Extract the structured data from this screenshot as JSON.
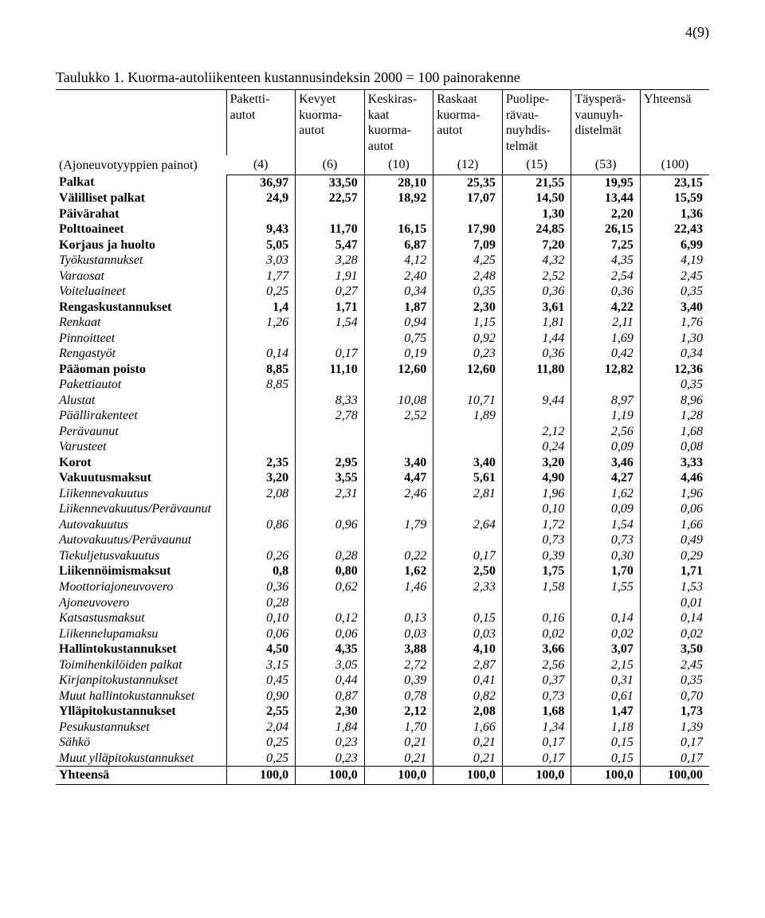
{
  "pageNumber": "4(9)",
  "caption": "Taulukko 1. Kuorma-autoliikenteen kustannusindeksin 2000 = 100 painorakenne",
  "headerLabel": "(Ajoneuvotyyppien painot)",
  "columns": [
    {
      "l1": "Paketti-",
      "l2": "autot",
      "l3": "",
      "l4": "",
      "w": "(4)"
    },
    {
      "l1": "Kevyet",
      "l2": "kuorma-",
      "l3": "autot",
      "l4": "",
      "w": "(6)"
    },
    {
      "l1": "Keskiras-",
      "l2": "kaat",
      "l3": "kuorma-",
      "l4": "autot",
      "w": "(10)"
    },
    {
      "l1": "Raskaat",
      "l2": "kuorma-",
      "l3": "autot",
      "l4": "",
      "w": "(12)"
    },
    {
      "l1": "Puolipe-",
      "l2": "rävau-",
      "l3": "nuyhdis-",
      "l4": "telmät",
      "w": "(15)"
    },
    {
      "l1": "Täysperä-",
      "l2": "vaunuyh-",
      "l3": "distelmät",
      "l4": "",
      "w": "(53)"
    },
    {
      "l1": "Yhteensä",
      "l2": "",
      "l3": "",
      "l4": "",
      "w": "(100)"
    }
  ],
  "rows": [
    {
      "label": "Palkat",
      "style": "bold",
      "v": [
        "36,97",
        "33,50",
        "28,10",
        "25,35",
        "21,55",
        "19,95",
        "23,15"
      ]
    },
    {
      "label": "Välilliset palkat",
      "style": "bold",
      "v": [
        "24,9",
        "22,57",
        "18,92",
        "17,07",
        "14,50",
        "13,44",
        "15,59"
      ]
    },
    {
      "label": "Päivärahat",
      "style": "bold",
      "v": [
        "",
        "",
        "",
        "",
        "1,30",
        "2,20",
        "1,36"
      ]
    },
    {
      "label": "Polttoaineet",
      "style": "bold",
      "v": [
        "9,43",
        "11,70",
        "16,15",
        "17,90",
        "24,85",
        "26,15",
        "22,43"
      ]
    },
    {
      "label": "Korjaus ja huolto",
      "style": "bold",
      "v": [
        "5,05",
        "5,47",
        "6,87",
        "7,09",
        "7,20",
        "7,25",
        "6,99"
      ]
    },
    {
      "label": "Työkustannukset",
      "style": "italic",
      "v": [
        "3,03",
        "3,28",
        "4,12",
        "4,25",
        "4,32",
        "4,35",
        "4,19"
      ]
    },
    {
      "label": "Varaosat",
      "style": "italic",
      "v": [
        "1,77",
        "1,91",
        "2,40",
        "2,48",
        "2,52",
        "2,54",
        "2,45"
      ]
    },
    {
      "label": "Voiteluaineet",
      "style": "italic",
      "v": [
        "0,25",
        "0,27",
        "0,34",
        "0,35",
        "0,36",
        "0,36",
        "0,35"
      ]
    },
    {
      "label": "Rengaskustannukset",
      "style": "bold",
      "v": [
        "1,4",
        "1,71",
        "1,87",
        "2,30",
        "3,61",
        "4,22",
        "3,40"
      ]
    },
    {
      "label": "Renkaat",
      "style": "italic",
      "v": [
        "1,26",
        "1,54",
        "0,94",
        "1,15",
        "1,81",
        "2,11",
        "1,76"
      ]
    },
    {
      "label": "Pinnoitteet",
      "style": "italic",
      "v": [
        "",
        "",
        "0,75",
        "0,92",
        "1,44",
        "1,69",
        "1,30"
      ]
    },
    {
      "label": "Rengastyöt",
      "style": "italic",
      "v": [
        "0,14",
        "0,17",
        "0,19",
        "0,23",
        "0,36",
        "0,42",
        "0,34"
      ]
    },
    {
      "label": "Pääoman poisto",
      "style": "bold",
      "v": [
        "8,85",
        "11,10",
        "12,60",
        "12,60",
        "11,80",
        "12,82",
        "12,36"
      ]
    },
    {
      "label": "Pakettiautot",
      "style": "italic",
      "v": [
        "8,85",
        "",
        "",
        "",
        "",
        "",
        "0,35"
      ]
    },
    {
      "label": "Alustat",
      "style": "italic",
      "v": [
        "",
        "8,33",
        "10,08",
        "10,71",
        "9,44",
        "8,97",
        "8,96"
      ]
    },
    {
      "label": "Päällirakenteet",
      "style": "italic",
      "v": [
        "",
        "2,78",
        "2,52",
        "1,89",
        "",
        "1,19",
        "1,28"
      ]
    },
    {
      "label": "Perävaunut",
      "style": "italic",
      "v": [
        "",
        "",
        "",
        "",
        "2,12",
        "2,56",
        "1,68"
      ]
    },
    {
      "label": "Varusteet",
      "style": "italic",
      "v": [
        "",
        "",
        "",
        "",
        "0,24",
        "0,09",
        "0,08"
      ]
    },
    {
      "label": "Korot",
      "style": "bold",
      "v": [
        "2,35",
        "2,95",
        "3,40",
        "3,40",
        "3,20",
        "3,46",
        "3,33"
      ]
    },
    {
      "label": "Vakuutusmaksut",
      "style": "bold",
      "v": [
        "3,20",
        "3,55",
        "4,47",
        "5,61",
        "4,90",
        "4,27",
        "4,46"
      ]
    },
    {
      "label": "Liikennevakuutus",
      "style": "italic",
      "v": [
        "2,08",
        "2,31",
        "2,46",
        "2,81",
        "1,96",
        "1,62",
        "1,96"
      ]
    },
    {
      "label": "Liikennevakuutus/Perävaunut",
      "style": "italic",
      "v": [
        "",
        "",
        "",
        "",
        "0,10",
        "0,09",
        "0,06"
      ]
    },
    {
      "label": "Autovakuutus",
      "style": "italic",
      "v": [
        "0,86",
        "0,96",
        "1,79",
        "2,64",
        "1,72",
        "1,54",
        "1,66"
      ]
    },
    {
      "label": "Autovakuutus/Perävaunut",
      "style": "italic",
      "v": [
        "",
        "",
        "",
        "",
        "0,73",
        "0,73",
        "0,49"
      ]
    },
    {
      "label": "Tiekuljetusvakuutus",
      "style": "italic",
      "v": [
        "0,26",
        "0,28",
        "0,22",
        "0,17",
        "0,39",
        "0,30",
        "0,29"
      ]
    },
    {
      "label": "Liikennöimismaksut",
      "style": "bold",
      "v": [
        "0,8",
        "0,80",
        "1,62",
        "2,50",
        "1,75",
        "1,70",
        "1,71"
      ]
    },
    {
      "label": "Moottoriajoneuvovero",
      "style": "italic",
      "v": [
        "0,36",
        "0,62",
        "1,46",
        "2,33",
        "1,58",
        "1,55",
        "1,53"
      ]
    },
    {
      "label": "Ajoneuvovero",
      "style": "italic",
      "v": [
        "0,28",
        "",
        "",
        "",
        "",
        "",
        "0,01"
      ]
    },
    {
      "label": "Katsastusmaksut",
      "style": "italic",
      "v": [
        "0,10",
        "0,12",
        "0,13",
        "0,15",
        "0,16",
        "0,14",
        "0,14"
      ]
    },
    {
      "label": "Liikennelupamaksu",
      "style": "italic",
      "v": [
        "0,06",
        "0,06",
        "0,03",
        "0,03",
        "0,02",
        "0,02",
        "0,02"
      ]
    },
    {
      "label": "Hallintokustannukset",
      "style": "bold",
      "v": [
        "4,50",
        "4,35",
        "3,88",
        "4,10",
        "3,66",
        "3,07",
        "3,50"
      ]
    },
    {
      "label": "Toimihenkilöiden palkat",
      "style": "italic",
      "v": [
        "3,15",
        "3,05",
        "2,72",
        "2,87",
        "2,56",
        "2,15",
        "2,45"
      ]
    },
    {
      "label": "Kirjanpitokustannukset",
      "style": "italic",
      "v": [
        "0,45",
        "0,44",
        "0,39",
        "0,41",
        "0,37",
        "0,31",
        "0,35"
      ]
    },
    {
      "label": "Muut hallintokustannukset",
      "style": "italic",
      "v": [
        "0,90",
        "0,87",
        "0,78",
        "0,82",
        "0,73",
        "0,61",
        "0,70"
      ]
    },
    {
      "label": "Ylläpitokustannukset",
      "style": "bold",
      "v": [
        "2,55",
        "2,30",
        "2,12",
        "2,08",
        "1,68",
        "1,47",
        "1,73"
      ]
    },
    {
      "label": "Pesukustannukset",
      "style": "italic",
      "v": [
        "2,04",
        "1,84",
        "1,70",
        "1,66",
        "1,34",
        "1,18",
        "1,39"
      ]
    },
    {
      "label": "Sähkö",
      "style": "italic",
      "v": [
        "0,25",
        "0,23",
        "0,21",
        "0,21",
        "0,17",
        "0,15",
        "0,17"
      ]
    },
    {
      "label": "Muut ylläpitokustannukset",
      "style": "italic",
      "v": [
        "0,25",
        "0,23",
        "0,21",
        "0,21",
        "0,17",
        "0,15",
        "0,17"
      ]
    },
    {
      "label": "Yhteensä",
      "style": "total",
      "v": [
        "100,0",
        "100,0",
        "100,0",
        "100,0",
        "100,0",
        "100,0",
        "100,00"
      ]
    }
  ]
}
